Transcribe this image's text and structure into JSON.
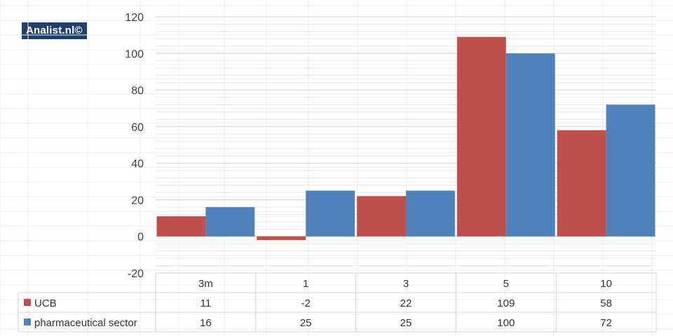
{
  "watermark": "Analist.nl©",
  "colors": {
    "UCB": "#c0504d",
    "pharmaceutical sector": "#4f81bd"
  },
  "chart_data": {
    "type": "bar",
    "categories": [
      "3m",
      "1",
      "3",
      "5",
      "10"
    ],
    "series": [
      {
        "name": "UCB",
        "values": [
          11,
          -2,
          22,
          109,
          58
        ]
      },
      {
        "name": "pharmaceutical sector",
        "values": [
          16,
          25,
          25,
          100,
          72
        ]
      }
    ],
    "ylim": [
      -20,
      120
    ],
    "yticks": [
      120,
      100,
      80,
      60,
      40,
      20,
      0,
      -20
    ],
    "grid": true,
    "legend": "data-table"
  }
}
